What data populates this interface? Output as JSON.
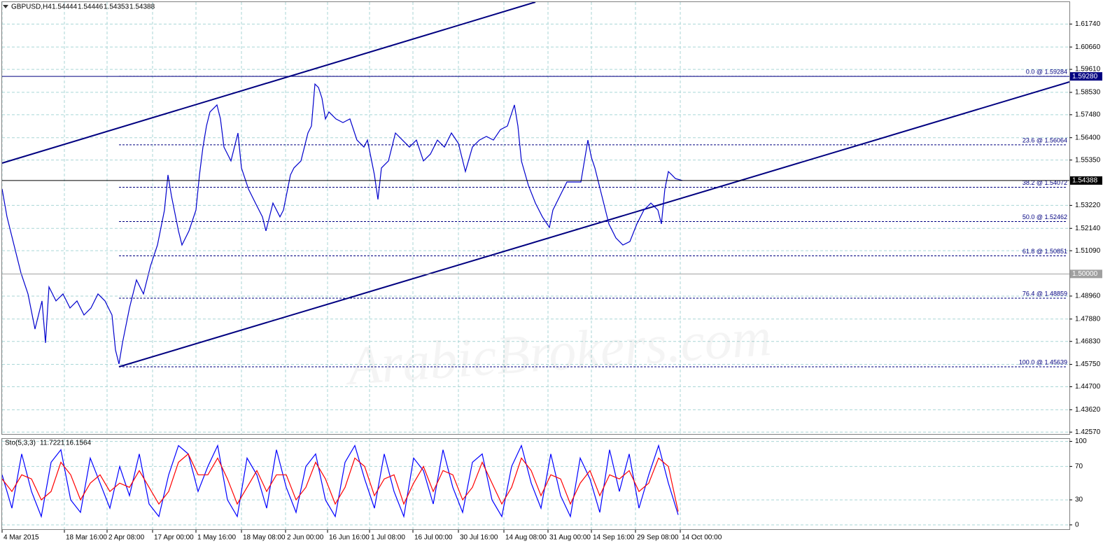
{
  "chart_data": [
    {
      "type": "line",
      "title": "GBPUSD,H4",
      "ohlc": [
        1.54444,
        1.54446,
        1.54353,
        1.54388
      ],
      "x": [
        0,
        7,
        17,
        27,
        37,
        47,
        57,
        62,
        67,
        77,
        87,
        97,
        107,
        117,
        127,
        137,
        147,
        157,
        162,
        167,
        172,
        182,
        192,
        202,
        212,
        222,
        232,
        237,
        242,
        252,
        257,
        267,
        277,
        282,
        287,
        292,
        297,
        307,
        312,
        317,
        327,
        337,
        342,
        352,
        362,
        372,
        377,
        387,
        397,
        402,
        412,
        417,
        427,
        437,
        442,
        447,
        452,
        457,
        462,
        467,
        477,
        487,
        497,
        507,
        517,
        522,
        532,
        537,
        542,
        552,
        562,
        572,
        582,
        592,
        602,
        612,
        622,
        632,
        642,
        652,
        662,
        672,
        682,
        692,
        702,
        712,
        722,
        732,
        737,
        742,
        752,
        762,
        772,
        782,
        787,
        797,
        807,
        817,
        827,
        837,
        842,
        847,
        857,
        867,
        877,
        887,
        897,
        907,
        917,
        927,
        937,
        942,
        947,
        952,
        957,
        962,
        972
      ],
      "values": [
        1.5399,
        1.5268,
        1.5136,
        1.5004,
        1.4906,
        1.4741,
        1.4873,
        1.4676,
        1.4939,
        1.4873,
        1.4906,
        1.484,
        1.4873,
        1.4807,
        1.484,
        1.4906,
        1.4873,
        1.4807,
        1.4643,
        1.4577,
        1.4676,
        1.484,
        1.4972,
        1.4906,
        1.5037,
        1.5136,
        1.53,
        1.5465,
        1.5366,
        1.5202,
        1.5136,
        1.5202,
        1.53,
        1.5465,
        1.5596,
        1.5695,
        1.5761,
        1.5794,
        1.5728,
        1.5596,
        1.5531,
        1.5662,
        1.5498,
        1.5399,
        1.5333,
        1.5268,
        1.5202,
        1.5333,
        1.5268,
        1.53,
        1.5465,
        1.5498,
        1.5531,
        1.5662,
        1.5695,
        1.5892,
        1.5876,
        1.5826,
        1.5728,
        1.5761,
        1.5728,
        1.5711,
        1.5728,
        1.5629,
        1.5596,
        1.5629,
        1.5465,
        1.535,
        1.5498,
        1.5531,
        1.5662,
        1.5629,
        1.5596,
        1.5629,
        1.5531,
        1.5563,
        1.5629,
        1.5596,
        1.5662,
        1.5613,
        1.5481,
        1.5596,
        1.5629,
        1.5646,
        1.5629,
        1.5678,
        1.5695,
        1.5794,
        1.5695,
        1.5531,
        1.5416,
        1.5333,
        1.5268,
        1.5218,
        1.53,
        1.5366,
        1.5432,
        1.5432,
        1.5432,
        1.5629,
        1.5547,
        1.5498,
        1.5366,
        1.5235,
        1.5169,
        1.5136,
        1.5152,
        1.5235,
        1.53,
        1.5333,
        1.53,
        1.5235,
        1.5399,
        1.5481,
        1.5465,
        1.5448,
        1.54388
      ],
      "color": "#0000cd",
      "xlim": [
        0,
        1525
      ],
      "ylim": [
        1.4248,
        1.6277
      ],
      "grid": true,
      "yticks": [
        {
          "value": 1.6174,
          "label": "1.61740"
        },
        {
          "value": 1.6066,
          "label": "1.60660"
        },
        {
          "value": 1.5961,
          "label": "1.59610"
        },
        {
          "value": 1.5853,
          "label": "1.58530"
        },
        {
          "value": 1.5748,
          "label": "1.57480"
        },
        {
          "value": 1.564,
          "label": "1.56400"
        },
        {
          "value": 1.5535,
          "label": "1.55350"
        },
        {
          "value": 1.5322,
          "label": "1.53220"
        },
        {
          "value": 1.5214,
          "label": "1.52140"
        },
        {
          "value": 1.5109,
          "label": "1.51090"
        },
        {
          "value": 1.4896,
          "label": "1.48960"
        },
        {
          "value": 1.4788,
          "label": "1.47880"
        },
        {
          "value": 1.4683,
          "label": "1.46830"
        },
        {
          "value": 1.4575,
          "label": "1.45750"
        },
        {
          "value": 1.447,
          "label": "1.44700"
        },
        {
          "value": 1.4362,
          "label": "1.43620"
        },
        {
          "value": 1.4257,
          "label": "1.42570"
        }
      ],
      "xticks": [
        {
          "value": 0,
          "label": "4 Mar 2015"
        },
        {
          "value": 89,
          "label": "18 Mar 16:00"
        },
        {
          "value": 150,
          "label": "2 Apr 08:00"
        },
        {
          "value": 215,
          "label": "17 Apr 00:00"
        },
        {
          "value": 277,
          "label": "1 May 16:00"
        },
        {
          "value": 342,
          "label": "18 May 08:00"
        },
        {
          "value": 405,
          "label": "2 Jun 00:00"
        },
        {
          "value": 465,
          "label": "16 Jun 16:00"
        },
        {
          "value": 525,
          "label": "1 Jul 08:00"
        },
        {
          "value": 587,
          "label": "16 Jul 00:00"
        },
        {
          "value": 652,
          "label": "30 Jul 16:00"
        },
        {
          "value": 717,
          "label": "14 Aug 08:00"
        },
        {
          "value": 780,
          "label": "31 Aug 00:00"
        },
        {
          "value": 842,
          "label": "14 Sep 16:00"
        },
        {
          "value": 905,
          "label": "29 Sep 08:00"
        },
        {
          "value": 969,
          "label": "14 Oct 00:00"
        }
      ],
      "fib_levels": [
        {
          "value": 1.59284,
          "label": "0.0 @ 1.59284"
        },
        {
          "value": 1.56064,
          "label": "23.6 @ 1.56064"
        },
        {
          "value": 1.54072,
          "label": "38.2 @ 1.54072"
        },
        {
          "value": 1.52462,
          "label": "50.0 @ 1.52462"
        },
        {
          "value": 1.50851,
          "label": "61.8 @ 1.50851"
        },
        {
          "value": 1.48859,
          "label": "76.4 @ 1.48859"
        },
        {
          "value": 1.45639,
          "label": "100.0 @ 1.45639"
        }
      ],
      "price_markers": [
        {
          "value": 1.5928,
          "label": "1.59280",
          "color": "#000080"
        },
        {
          "value": 1.54388,
          "label": "1.54388",
          "color": "#000000"
        },
        {
          "value": 1.5,
          "label": "1.50000",
          "color": "#a0a0a0"
        }
      ],
      "watermark": "ArabicBrokers.com"
    },
    {
      "type": "line",
      "title": "Sto(5,3,3)",
      "indicator_values": [
        11.7221,
        16.1564
      ],
      "x": [
        0,
        14,
        28,
        42,
        56,
        70,
        84,
        98,
        112,
        126,
        140,
        154,
        168,
        182,
        196,
        210,
        224,
        238,
        252,
        266,
        280,
        294,
        308,
        322,
        336,
        350,
        364,
        378,
        392,
        406,
        420,
        434,
        448,
        462,
        476,
        490,
        504,
        518,
        532,
        546,
        560,
        574,
        588,
        602,
        616,
        630,
        644,
        658,
        672,
        686,
        700,
        714,
        728,
        742,
        756,
        770,
        784,
        798,
        812,
        826,
        840,
        854,
        868,
        882,
        896,
        910,
        924,
        938,
        952,
        966
      ],
      "series": [
        {
          "color": "#0000ff",
          "values": [
            60,
            20,
            85,
            40,
            10,
            75,
            90,
            30,
            15,
            80,
            50,
            20,
            70,
            35,
            85,
            25,
            10,
            60,
            95,
            85,
            40,
            70,
            95,
            30,
            10,
            80,
            60,
            20,
            90,
            45,
            15,
            70,
            85,
            30,
            10,
            75,
            95,
            55,
            20,
            85,
            40,
            10,
            80,
            65,
            25,
            90,
            45,
            15,
            75,
            85,
            30,
            10,
            70,
            95,
            50,
            20,
            85,
            35,
            10,
            80,
            55,
            15,
            90,
            40,
            85,
            20,
            60,
            95,
            50,
            12
          ]
        },
        {
          "color": "#ff0000",
          "values": [
            55,
            40,
            60,
            55,
            30,
            40,
            75,
            60,
            30,
            50,
            60,
            40,
            50,
            45,
            65,
            45,
            25,
            40,
            75,
            85,
            60,
            60,
            80,
            55,
            25,
            45,
            65,
            40,
            60,
            60,
            30,
            45,
            75,
            55,
            25,
            45,
            80,
            70,
            35,
            55,
            60,
            25,
            50,
            70,
            40,
            65,
            60,
            30,
            45,
            75,
            50,
            25,
            45,
            80,
            65,
            35,
            60,
            55,
            25,
            50,
            65,
            35,
            60,
            55,
            65,
            40,
            50,
            80,
            70,
            16
          ]
        }
      ],
      "xlim": [
        0,
        1525
      ],
      "ylim": [
        -6,
        103
      ],
      "yticks": [
        0,
        30,
        70,
        100
      ],
      "grid": true
    }
  ]
}
